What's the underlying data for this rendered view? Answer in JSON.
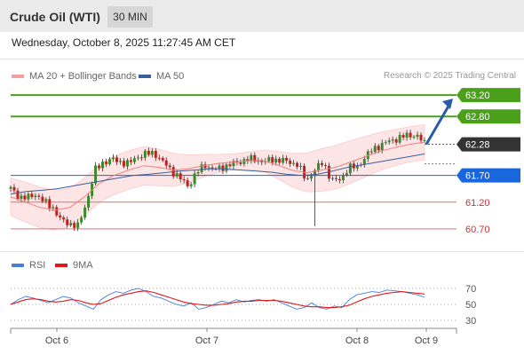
{
  "header": {
    "title": "Crude Oil (WTI)",
    "timeframe": "30 MIN"
  },
  "timestamp": "Wednesday, October 8, 2025 11:27:45 AM CET",
  "legend": {
    "ma20": {
      "label": "MA 20 + Bollinger Bands",
      "color": "#f08080"
    },
    "ma50": {
      "label": "MA 50",
      "color": "#3a5fa0"
    }
  },
  "credit": "Research © 2025 Trading Central",
  "rsi_legend": {
    "rsi": {
      "label": "RSI",
      "color": "#4a7fd8"
    },
    "ma9": {
      "label": "9MA",
      "color": "#e01818"
    }
  },
  "colors": {
    "resistance": "#4aa01a",
    "pivot": "#1a66dd",
    "support": "#e07070",
    "last": "#333333",
    "arrow": "#2a5aa8"
  },
  "chart_data": [
    {
      "type": "candlestick",
      "ylim": [
        60.5,
        63.4
      ],
      "levels": [
        {
          "value": 63.2,
          "label": "63.20",
          "kind": "resistance"
        },
        {
          "value": 62.8,
          "label": "62.80",
          "kind": "resistance"
        },
        {
          "value": 62.28,
          "label": "62.28",
          "kind": "last"
        },
        {
          "value": 61.7,
          "label": "61.70",
          "kind": "pivot"
        },
        {
          "value": 61.2,
          "label": "61.20",
          "kind": "support"
        },
        {
          "value": 60.7,
          "label": "60.70",
          "kind": "support"
        }
      ],
      "x_ticks": [
        "Oct 6",
        "Oct 7",
        "Oct 8",
        "Oct 9"
      ],
      "close_path": [
        61.45,
        61.3,
        61.28,
        61.35,
        61.2,
        61.1,
        60.85,
        60.8,
        60.75,
        61.2,
        61.8,
        61.95,
        62.0,
        61.95,
        61.92,
        62.05,
        62.1,
        62.12,
        61.95,
        61.8,
        61.65,
        61.5,
        61.75,
        61.9,
        61.8,
        61.85,
        61.9,
        61.95,
        62.0,
        62.0,
        61.95,
        62.0,
        61.98,
        61.95,
        61.9,
        61.6,
        61.8,
        61.95,
        61.6,
        61.62,
        61.85,
        61.85,
        62.05,
        62.2,
        62.28,
        62.35,
        62.4,
        62.45,
        62.45,
        62.3
      ],
      "ma20_path": [
        61.3,
        61.2,
        61.1,
        61.05,
        61.1,
        61.3,
        61.55,
        61.7,
        61.8,
        61.88,
        61.85,
        61.8,
        61.82,
        61.88,
        61.92,
        61.95,
        61.97,
        61.98,
        61.9,
        61.8,
        61.75,
        61.8,
        61.85,
        61.95,
        62.05,
        62.15,
        62.22,
        62.28,
        62.32
      ],
      "ma50_path": [
        61.35,
        61.4,
        61.42,
        61.45,
        61.5,
        61.55,
        61.6,
        61.65,
        61.7,
        61.72,
        61.75,
        61.78,
        61.8,
        61.82,
        61.82,
        61.8,
        61.78,
        61.76,
        61.72,
        61.7,
        61.72,
        61.78,
        61.85,
        61.9,
        61.95,
        62.0,
        62.05,
        62.1
      ],
      "projection_target": 63.2
    },
    {
      "type": "line",
      "title": "RSI",
      "ylim": [
        20,
        80
      ],
      "y_ticks": [
        70,
        50,
        30
      ],
      "series": [
        {
          "name": "RSI",
          "values": [
            50,
            56,
            60,
            58,
            55,
            52,
            56,
            60,
            58,
            52,
            48,
            44,
            56,
            62,
            66,
            64,
            68,
            70,
            66,
            60,
            58,
            54,
            50,
            48,
            52,
            44,
            46,
            50,
            54,
            52,
            56,
            53,
            55,
            56,
            54,
            56,
            52,
            48,
            44,
            46,
            52,
            46,
            44,
            48,
            46,
            56,
            62,
            64,
            66,
            65,
            68,
            67,
            66,
            64,
            62,
            59
          ]
        },
        {
          "name": "9MA",
          "values": [
            50,
            53,
            56,
            57,
            56,
            54,
            53,
            54,
            56,
            55,
            52,
            50,
            51,
            55,
            59,
            62,
            64,
            66,
            67,
            65,
            62,
            59,
            56,
            53,
            51,
            50,
            49,
            49,
            50,
            51,
            53,
            54,
            54,
            55,
            55,
            55,
            54,
            52,
            50,
            48,
            47,
            47,
            46,
            46,
            47,
            49,
            53,
            57,
            60,
            62,
            64,
            65,
            66,
            65,
            64,
            63
          ]
        }
      ]
    }
  ]
}
